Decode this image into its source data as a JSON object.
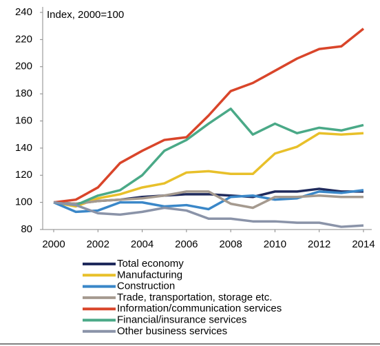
{
  "chart_data": {
    "type": "line",
    "y_label": "Index, 2000=100",
    "x": [
      2000,
      2001,
      2002,
      2003,
      2004,
      2005,
      2006,
      2007,
      2008,
      2009,
      2010,
      2011,
      2012,
      2013,
      2014
    ],
    "xlim": [
      2000,
      2014
    ],
    "xticks": [
      2000,
      2002,
      2004,
      2006,
      2008,
      2010,
      2012,
      2014
    ],
    "ylim": [
      80,
      240
    ],
    "yticks": [
      80,
      100,
      120,
      140,
      160,
      180,
      200,
      220,
      240
    ],
    "series": [
      {
        "name": "Total economy",
        "color": "#1f2a5c",
        "values": [
          100,
          99,
          101,
          102,
          104,
          105,
          106,
          106,
          105,
          104,
          108,
          108,
          110,
          108,
          108
        ]
      },
      {
        "name": "Manufacturing",
        "color": "#e8c02a",
        "values": [
          100,
          97,
          103,
          106,
          111,
          114,
          122,
          123,
          121,
          121,
          136,
          141,
          151,
          150,
          151
        ]
      },
      {
        "name": "Construction",
        "color": "#3a87c8",
        "values": [
          100,
          93,
          94,
          100,
          100,
          97,
          98,
          95,
          104,
          105,
          102,
          103,
          108,
          107,
          109
        ]
      },
      {
        "name": "Trade, transportation, storage etc.",
        "color": "#a59a8f",
        "values": [
          100,
          99,
          101,
          102,
          103,
          105,
          108,
          108,
          99,
          96,
          104,
          104,
          105,
          104,
          104
        ]
      },
      {
        "name": "Information/communication services",
        "color": "#d9452a",
        "values": [
          100,
          102,
          111,
          129,
          138,
          146,
          148,
          164,
          182,
          188,
          197,
          206,
          213,
          215,
          228
        ]
      },
      {
        "name": "Financial/insurance services",
        "color": "#4aa987",
        "values": [
          100,
          98,
          105,
          109,
          120,
          138,
          146,
          158,
          169,
          150,
          158,
          151,
          155,
          153,
          157
        ]
      },
      {
        "name": "Other business services",
        "color": "#8a93a8",
        "values": [
          100,
          98,
          92,
          91,
          93,
          96,
          94,
          88,
          88,
          86,
          86,
          85,
          85,
          82,
          83
        ]
      }
    ]
  }
}
